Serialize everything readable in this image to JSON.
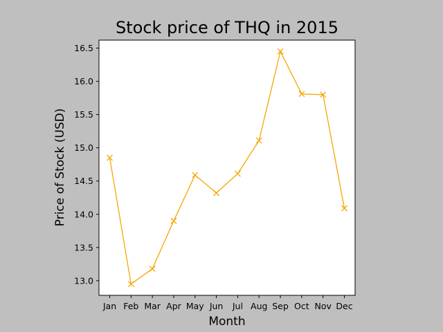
{
  "chart_data": {
    "type": "line",
    "title": "Stock price of THQ in 2015",
    "xlabel": "Month",
    "ylabel": "Price of Stock (USD)",
    "categories": [
      "Jan",
      "Feb",
      "Mar",
      "Apr",
      "May",
      "Jun",
      "Jul",
      "Aug",
      "Sep",
      "Oct",
      "Nov",
      "Dec"
    ],
    "series": [
      {
        "values": [
          14.85,
          12.95,
          13.18,
          13.9,
          14.59,
          14.32,
          14.61,
          15.11,
          16.45,
          15.81,
          15.8,
          14.09
        ],
        "color": "#f5a500",
        "marker": "x"
      }
    ],
    "ylim": [
      12.78,
      16.62
    ],
    "yticks": [
      13.0,
      13.5,
      14.0,
      14.5,
      15.0,
      15.5,
      16.0,
      16.5
    ],
    "ytick_labels": [
      "13.0",
      "13.5",
      "14.0",
      "14.5",
      "15.0",
      "15.5",
      "16.0",
      "16.5"
    ],
    "grid": false,
    "legend": "none",
    "background_color": "#bfbfbf",
    "plot_background": "#ffffff"
  }
}
